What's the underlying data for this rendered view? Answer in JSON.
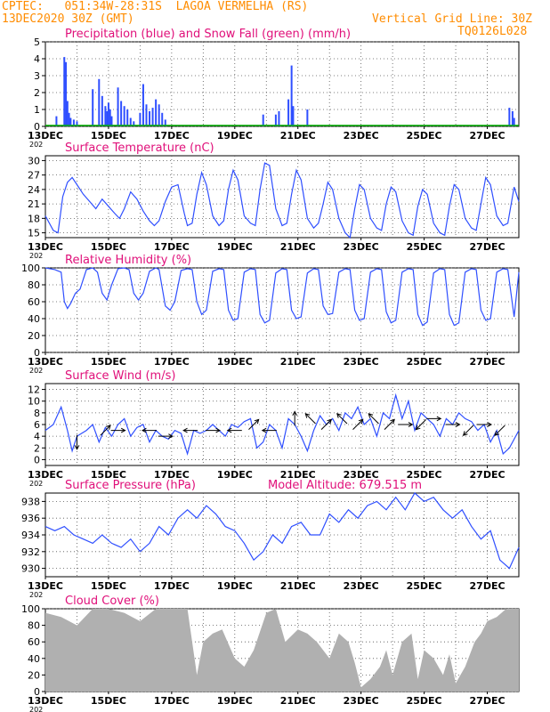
{
  "header": {
    "line1": "CPTEC:   051:34W-28:31S  LAGOA VERMELHA (RS)",
    "line2": "13DEC2020 30Z (GMT)",
    "grid_note": "Vertical Grid Line: 30Z",
    "code": "TQ0126L028"
  },
  "colors": {
    "header_text": "#ff8c00",
    "panel_title": "#e0107a",
    "series_blue": "#2f4fff",
    "snow_green": "#00b000",
    "cloud_gray": "#b0b0b0",
    "grid": "#555555"
  },
  "x_axis": {
    "start_label": "13DEC",
    "end_day": 28,
    "tick_labels": [
      "13DEC",
      "15DEC",
      "17DEC",
      "19DEC",
      "21DEC",
      "23DEC",
      "25DEC",
      "27DEC"
    ],
    "tick_days": [
      0,
      2,
      4,
      6,
      8,
      10,
      12,
      14
    ],
    "year_fragment": "202"
  },
  "panels": [
    {
      "id": "precip",
      "title": "Precipitation (blue) and Snow Fall (green) (mm/h)",
      "ylim": [
        0,
        5
      ],
      "yticks": [
        0,
        1,
        2,
        3,
        4,
        5
      ]
    },
    {
      "id": "temp",
      "title": "Surface Temperature (nC)",
      "ylim": [
        14,
        31
      ],
      "yticks": [
        15,
        18,
        21,
        24,
        27,
        30
      ]
    },
    {
      "id": "rh",
      "title": "Relative Humidity (%)",
      "ylim": [
        0,
        100
      ],
      "yticks": [
        0,
        20,
        40,
        60,
        80,
        100
      ]
    },
    {
      "id": "wind",
      "title": "Surface Wind (m/s)",
      "ylim": [
        -1,
        13
      ],
      "yticks": [
        0,
        2,
        4,
        6,
        8,
        10,
        12
      ]
    },
    {
      "id": "pressure",
      "title": "Surface Pressure (hPa)",
      "subtitle": "Model Altitude: 679.515 m",
      "ylim": [
        929,
        939
      ],
      "yticks": [
        930,
        932,
        934,
        936,
        938
      ]
    },
    {
      "id": "cloud",
      "title": "Cloud Cover (%)",
      "ylim": [
        0,
        100
      ],
      "yticks": [
        0,
        20,
        40,
        60,
        80,
        100
      ]
    }
  ],
  "chart_data": [
    {
      "type": "bar",
      "title": "Precipitation (blue) and Snow Fall (green) (mm/h)",
      "x_days": [
        0.35,
        0.6,
        0.65,
        0.7,
        0.75,
        0.8,
        0.9,
        1.0,
        1.5,
        1.7,
        1.8,
        1.9,
        1.95,
        2.0,
        2.05,
        2.1,
        2.3,
        2.4,
        2.5,
        2.6,
        2.7,
        2.8,
        3.0,
        3.1,
        3.2,
        3.3,
        3.4,
        3.5,
        3.6,
        3.7,
        3.8,
        6.9,
        7.3,
        7.4,
        7.7,
        7.8,
        7.85,
        8.3,
        14.7,
        14.8,
        14.85
      ],
      "values": [
        0.6,
        4.1,
        3.8,
        1.5,
        0.8,
        0.5,
        0.4,
        0.3,
        2.2,
        2.8,
        1.8,
        1.2,
        0.9,
        1.4,
        1.0,
        0.6,
        2.3,
        1.5,
        1.2,
        1.0,
        0.5,
        0.3,
        0.8,
        2.5,
        1.3,
        0.9,
        1.1,
        1.6,
        1.3,
        0.8,
        0.4,
        0.7,
        0.7,
        0.9,
        1.6,
        3.6,
        1.2,
        1.0,
        1.1,
        0.9,
        0.5
      ],
      "snow_values": "0",
      "ylim": [
        0,
        5
      ]
    },
    {
      "type": "line",
      "title": "Surface Temperature (nC)",
      "x_days": [
        0,
        0.25,
        0.4,
        0.55,
        0.7,
        0.85,
        1.0,
        1.2,
        1.4,
        1.6,
        1.8,
        2.0,
        2.2,
        2.35,
        2.5,
        2.7,
        2.9,
        3.1,
        3.3,
        3.45,
        3.6,
        3.8,
        4.0,
        4.2,
        4.4,
        4.5,
        4.65,
        4.8,
        4.95,
        5.1,
        5.3,
        5.5,
        5.65,
        5.8,
        5.95,
        6.1,
        6.3,
        6.5,
        6.65,
        6.8,
        6.95,
        7.1,
        7.3,
        7.5,
        7.65,
        7.8,
        7.95,
        8.1,
        8.3,
        8.5,
        8.65,
        8.8,
        8.95,
        9.1,
        9.3,
        9.5,
        9.65,
        9.8,
        9.95,
        10.1,
        10.3,
        10.5,
        10.65,
        10.8,
        10.95,
        11.1,
        11.3,
        11.5,
        11.65,
        11.8,
        11.95,
        12.1,
        12.3,
        12.5,
        12.65,
        12.8,
        12.95,
        13.1,
        13.3,
        13.5,
        13.65,
        13.8,
        13.95,
        14.1,
        14.3,
        14.5,
        14.65,
        14.85,
        15.0
      ],
      "values": [
        18.5,
        15.5,
        15.0,
        22.5,
        25.5,
        26.5,
        25.0,
        23.0,
        21.5,
        20.0,
        22.0,
        20.5,
        19.0,
        18.0,
        20.0,
        23.5,
        22.0,
        19.5,
        17.5,
        16.5,
        17.5,
        21.5,
        24.5,
        25.0,
        19.0,
        16.5,
        17.0,
        23.0,
        27.5,
        25.0,
        18.5,
        16.5,
        17.5,
        24.0,
        28.0,
        26.0,
        18.5,
        17.0,
        16.5,
        24.0,
        29.5,
        29.0,
        20.0,
        16.5,
        17.0,
        23.0,
        28.0,
        26.0,
        18.0,
        16.0,
        17.0,
        21.0,
        25.5,
        24.0,
        18.0,
        15.0,
        14.0,
        20.0,
        25.0,
        24.0,
        18.0,
        16.0,
        15.5,
        21.0,
        24.5,
        23.5,
        17.5,
        15.0,
        14.5,
        20.5,
        24.0,
        23.0,
        17.0,
        15.0,
        14.5,
        20.5,
        25.0,
        24.0,
        18.0,
        16.0,
        15.5,
        21.0,
        26.5,
        25.0,
        18.5,
        16.5,
        17.0,
        24.5,
        21.5
      ],
      "ylim": [
        14,
        31
      ]
    },
    {
      "type": "line",
      "title": "Relative Humidity (%)",
      "x_days": [
        0,
        0.3,
        0.5,
        0.6,
        0.7,
        0.8,
        0.95,
        1.1,
        1.3,
        1.5,
        1.65,
        1.8,
        1.95,
        2.1,
        2.3,
        2.5,
        2.65,
        2.8,
        2.95,
        3.1,
        3.3,
        3.5,
        3.6,
        3.8,
        3.95,
        4.1,
        4.3,
        4.5,
        4.65,
        4.8,
        4.95,
        5.1,
        5.3,
        5.5,
        5.65,
        5.8,
        5.95,
        6.1,
        6.3,
        6.5,
        6.65,
        6.8,
        6.95,
        7.1,
        7.3,
        7.5,
        7.65,
        7.8,
        7.95,
        8.1,
        8.3,
        8.5,
        8.65,
        8.8,
        8.95,
        9.1,
        9.3,
        9.5,
        9.65,
        9.8,
        9.95,
        10.1,
        10.3,
        10.5,
        10.65,
        10.8,
        10.95,
        11.1,
        11.3,
        11.5,
        11.65,
        11.8,
        11.95,
        12.1,
        12.3,
        12.5,
        12.65,
        12.8,
        12.95,
        13.1,
        13.3,
        13.5,
        13.65,
        13.8,
        13.95,
        14.1,
        14.3,
        14.5,
        14.65,
        14.85,
        15.0
      ],
      "values": [
        100,
        98,
        95,
        60,
        52,
        58,
        70,
        75,
        98,
        100,
        95,
        70,
        62,
        80,
        99,
        100,
        98,
        70,
        62,
        70,
        96,
        100,
        98,
        55,
        50,
        60,
        97,
        99,
        98,
        60,
        45,
        50,
        96,
        99,
        98,
        50,
        38,
        40,
        95,
        99,
        98,
        45,
        35,
        38,
        94,
        99,
        98,
        50,
        40,
        42,
        94,
        99,
        98,
        55,
        45,
        46,
        95,
        99,
        98,
        50,
        38,
        40,
        95,
        99,
        98,
        48,
        35,
        38,
        95,
        99,
        98,
        45,
        32,
        36,
        94,
        99,
        98,
        45,
        32,
        35,
        95,
        99,
        98,
        50,
        38,
        40,
        95,
        99,
        98,
        42,
        95
      ],
      "ylim": [
        0,
        100
      ]
    },
    {
      "type": "line",
      "title": "Surface Wind (m/s)",
      "x_days": [
        0,
        0.25,
        0.5,
        0.7,
        0.85,
        1.0,
        1.15,
        1.3,
        1.5,
        1.7,
        1.9,
        2.1,
        2.3,
        2.5,
        2.7,
        2.9,
        3.1,
        3.3,
        3.5,
        3.7,
        3.9,
        4.1,
        4.3,
        4.5,
        4.7,
        4.9,
        5.1,
        5.3,
        5.5,
        5.7,
        5.9,
        6.1,
        6.3,
        6.5,
        6.7,
        6.9,
        7.1,
        7.3,
        7.5,
        7.7,
        7.9,
        8.1,
        8.3,
        8.5,
        8.7,
        8.9,
        9.1,
        9.3,
        9.5,
        9.7,
        9.9,
        10.1,
        10.3,
        10.5,
        10.7,
        10.9,
        11.1,
        11.3,
        11.5,
        11.7,
        11.9,
        12.1,
        12.3,
        12.5,
        12.7,
        12.9,
        13.1,
        13.3,
        13.5,
        13.7,
        13.9,
        14.1,
        14.3,
        14.5,
        14.7,
        15.0
      ],
      "values": [
        5,
        6,
        9,
        5,
        1.5,
        4,
        4.5,
        5,
        6,
        3,
        5.5,
        4,
        6,
        7,
        4,
        5.5,
        6,
        3,
        5,
        4,
        3.5,
        5,
        4.5,
        1,
        5,
        4.5,
        5,
        6,
        5,
        4,
        6,
        5.5,
        6.5,
        7,
        2,
        3,
        6,
        5,
        2,
        7,
        6,
        4,
        1.5,
        5,
        7.5,
        6,
        7,
        5,
        8,
        7,
        9,
        6,
        7,
        4,
        8,
        7,
        11,
        7,
        10,
        5,
        8,
        7,
        6,
        4,
        7,
        6,
        8,
        7,
        6.5,
        5,
        6,
        3,
        5,
        1,
        2,
        5
      ],
      "arrows": [
        {
          "day": 1.0,
          "speed": 3,
          "dir": "s"
        },
        {
          "day": 1.9,
          "speed": 5,
          "dir": "ne"
        },
        {
          "day": 2.3,
          "speed": 5,
          "dir": "e"
        },
        {
          "day": 3.3,
          "speed": 5,
          "dir": "w"
        },
        {
          "day": 3.8,
          "speed": 4,
          "dir": "e"
        },
        {
          "day": 4.6,
          "speed": 5,
          "dir": "w"
        },
        {
          "day": 5.3,
          "speed": 5,
          "dir": "e"
        },
        {
          "day": 6.0,
          "speed": 5,
          "dir": "w"
        },
        {
          "day": 6.6,
          "speed": 6,
          "dir": "ne"
        },
        {
          "day": 7.1,
          "speed": 5,
          "dir": "w"
        },
        {
          "day": 7.9,
          "speed": 7,
          "dir": "n"
        },
        {
          "day": 8.4,
          "speed": 7,
          "dir": "nw"
        },
        {
          "day": 8.9,
          "speed": 6,
          "dir": "ne"
        },
        {
          "day": 9.4,
          "speed": 7,
          "dir": "nw"
        },
        {
          "day": 9.9,
          "speed": 6,
          "dir": "ne"
        },
        {
          "day": 10.4,
          "speed": 7,
          "dir": "nw"
        },
        {
          "day": 10.9,
          "speed": 6,
          "dir": "ne"
        },
        {
          "day": 11.4,
          "speed": 6,
          "dir": "e"
        },
        {
          "day": 11.9,
          "speed": 6,
          "dir": "sw"
        },
        {
          "day": 12.3,
          "speed": 7,
          "dir": "e"
        },
        {
          "day": 12.9,
          "speed": 6,
          "dir": "e"
        },
        {
          "day": 13.4,
          "speed": 5,
          "dir": "sw"
        },
        {
          "day": 13.9,
          "speed": 6,
          "dir": "e"
        },
        {
          "day": 14.4,
          "speed": 5,
          "dir": "sw"
        }
      ],
      "ylim": [
        -1,
        13
      ]
    },
    {
      "type": "line",
      "title": "Surface Pressure (hPa)",
      "subtitle": "Model Altitude: 679.515 m",
      "x_days": [
        0,
        0.3,
        0.6,
        0.9,
        1.2,
        1.5,
        1.8,
        2.1,
        2.4,
        2.7,
        3.0,
        3.3,
        3.6,
        3.9,
        4.2,
        4.5,
        4.8,
        5.1,
        5.4,
        5.7,
        6.0,
        6.3,
        6.6,
        6.9,
        7.2,
        7.5,
        7.8,
        8.1,
        8.4,
        8.7,
        9.0,
        9.3,
        9.6,
        9.9,
        10.2,
        10.5,
        10.8,
        11.1,
        11.4,
        11.7,
        12.0,
        12.3,
        12.6,
        12.9,
        13.2,
        13.5,
        13.8,
        14.1,
        14.4,
        14.7,
        15.0
      ],
      "values": [
        935,
        934.5,
        935,
        934,
        933.5,
        933,
        934,
        933,
        932.5,
        933.5,
        932,
        933,
        935,
        934,
        936,
        937,
        936,
        937.5,
        936.5,
        935,
        934.5,
        933,
        931,
        932,
        934,
        933,
        935,
        935.5,
        934,
        934,
        936.5,
        935.5,
        937,
        936,
        937.5,
        938,
        937,
        938.5,
        937,
        939,
        938,
        938.5,
        937,
        936,
        937,
        935,
        933.5,
        934.5,
        931,
        930,
        932.5
      ],
      "ylim": [
        929,
        939
      ]
    },
    {
      "type": "area",
      "title": "Cloud Cover (%)",
      "x_days": [
        0,
        0.5,
        1.0,
        1.5,
        2.0,
        2.5,
        3.0,
        3.5,
        4.0,
        4.5,
        4.8,
        5.0,
        5.3,
        5.6,
        6.0,
        6.3,
        6.6,
        7.0,
        7.3,
        7.6,
        8.0,
        8.3,
        8.6,
        9.0,
        9.3,
        9.6,
        9.8,
        10.0,
        10.3,
        10.6,
        10.8,
        11.0,
        11.3,
        11.6,
        11.8,
        12.0,
        12.3,
        12.6,
        12.8,
        13.0,
        13.3,
        13.6,
        13.8,
        14.0,
        14.3,
        14.6,
        15.0
      ],
      "values": [
        95,
        90,
        80,
        100,
        100,
        95,
        85,
        100,
        100,
        100,
        20,
        60,
        70,
        75,
        40,
        30,
        50,
        95,
        100,
        60,
        75,
        70,
        60,
        40,
        70,
        60,
        35,
        5,
        15,
        30,
        50,
        20,
        60,
        70,
        15,
        50,
        40,
        20,
        45,
        10,
        30,
        60,
        70,
        85,
        90,
        100,
        100
      ],
      "ylim": [
        0,
        100
      ]
    }
  ]
}
